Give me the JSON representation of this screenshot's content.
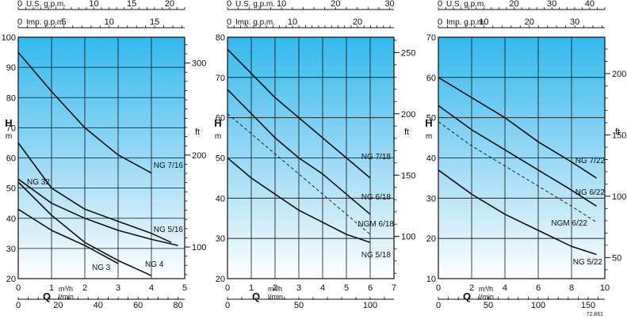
{
  "figure_code": "72.861",
  "chart_data": [
    {
      "type": "line",
      "ylabel": "H",
      "yunit": "m",
      "ylabel_right": "ft",
      "xlabel": "Q",
      "xunits": [
        "m³/h",
        "l/min"
      ],
      "ylim": [
        20,
        100
      ],
      "y_ticks": [
        20,
        30,
        40,
        50,
        60,
        70,
        80,
        90,
        100
      ],
      "ft_ticks": [
        100,
        200,
        300
      ],
      "xlim_m3h": [
        0,
        5
      ],
      "m3h_ticks": [
        0,
        1,
        2,
        3,
        4,
        5
      ],
      "lmin_ticks": [
        0,
        20,
        40,
        60,
        80
      ],
      "top_scales": [
        {
          "label": "U.S. g.p.m.",
          "ticks": [
            0,
            10,
            15,
            20
          ],
          "tick_labels": [
            "0",
            "10",
            "15",
            "20"
          ]
        },
        {
          "label": "Imp. g.p.m.",
          "ticks": [
            0,
            5,
            10,
            15
          ],
          "tick_labels": [
            "0",
            "5",
            "10",
            "15"
          ]
        }
      ],
      "series": [
        {
          "name": "NG 7/16",
          "dashed": false,
          "x": [
            0,
            1,
            2,
            3,
            4
          ],
          "y": [
            95,
            82,
            70,
            61,
            55
          ]
        },
        {
          "name": "NG 32",
          "dashed": false,
          "x": [
            0,
            1,
            2,
            3,
            4,
            4.8
          ],
          "y": [
            53,
            45,
            40,
            36,
            33,
            31
          ]
        },
        {
          "name": "NG 5/16",
          "dashed": false,
          "x": [
            0,
            1,
            2,
            3,
            4,
            4.6
          ],
          "y": [
            65,
            50,
            43,
            39,
            35,
            32
          ]
        },
        {
          "name": "NG 4",
          "dashed": false,
          "x": [
            0,
            1,
            2,
            3,
            4
          ],
          "y": [
            52,
            41,
            32,
            26,
            21
          ]
        },
        {
          "name": "NG 3",
          "dashed": false,
          "x": [
            0,
            1,
            2,
            3
          ],
          "y": [
            43,
            36,
            31,
            25
          ]
        }
      ]
    },
    {
      "type": "line",
      "ylabel": "H",
      "yunit": "m",
      "ylabel_right": "ft",
      "xlabel": "Q",
      "xunits": [
        "m³/h",
        "l/min"
      ],
      "ylim": [
        20,
        80
      ],
      "y_ticks": [
        20,
        30,
        40,
        50,
        60,
        70,
        80
      ],
      "ft_ticks": [
        100,
        150,
        200,
        250
      ],
      "xlim_m3h": [
        0,
        7
      ],
      "m3h_ticks": [
        0,
        1,
        2,
        3,
        4,
        5,
        6,
        7
      ],
      "lmin_ticks": [
        0,
        50,
        100
      ],
      "top_scales": [
        {
          "label": "U.S. g.p.m.",
          "ticks": [
            0,
            10,
            20,
            30
          ],
          "tick_labels": [
            "0",
            "10",
            "20",
            "30"
          ]
        },
        {
          "label": "Imp. g.p.m.",
          "ticks": [
            0,
            10,
            20
          ],
          "tick_labels": [
            "0",
            "10",
            "20"
          ]
        }
      ],
      "series": [
        {
          "name": "NG 7/18",
          "dashed": false,
          "x": [
            0,
            1,
            2,
            3,
            4,
            5,
            6
          ],
          "y": [
            77,
            71,
            65,
            60,
            55,
            50,
            45
          ]
        },
        {
          "name": "NG 6/18",
          "dashed": false,
          "x": [
            0,
            1,
            2,
            3,
            4,
            5,
            6
          ],
          "y": [
            67,
            61,
            55,
            50,
            46,
            41,
            36
          ]
        },
        {
          "name": "NGM 6/18",
          "dashed": true,
          "x": [
            0,
            1,
            2,
            3,
            4,
            5,
            6
          ],
          "y": [
            61,
            56,
            51,
            46,
            41,
            36,
            31
          ]
        },
        {
          "name": "NG 5/18",
          "dashed": false,
          "x": [
            0,
            1,
            2,
            3,
            4,
            5,
            6
          ],
          "y": [
            50,
            45,
            41,
            37,
            34,
            31,
            29
          ]
        }
      ]
    },
    {
      "type": "line",
      "ylabel": "H",
      "yunit": "m",
      "ylabel_right": "ft",
      "xlabel": "Q",
      "xunits": [
        "m³/h",
        "l/min"
      ],
      "ylim": [
        10,
        70
      ],
      "y_ticks": [
        10,
        20,
        30,
        40,
        50,
        60,
        70
      ],
      "ft_ticks": [
        50,
        100,
        150,
        200
      ],
      "xlim_m3h": [
        0,
        10
      ],
      "m3h_ticks": [
        0,
        2,
        4,
        6,
        8,
        10
      ],
      "lmin_ticks": [
        0,
        50,
        100,
        150
      ],
      "top_scales": [
        {
          "label": "U.S. g.p.m.",
          "ticks": [
            0,
            20,
            30,
            40
          ],
          "tick_labels": [
            "0",
            "20",
            "30",
            "40"
          ]
        },
        {
          "label": "Imp. g.p.m.",
          "ticks": [
            0,
            10,
            20,
            30
          ],
          "tick_labels": [
            "0",
            "10",
            "20",
            "30"
          ]
        }
      ],
      "series": [
        {
          "name": "NG 7/22",
          "dashed": false,
          "x": [
            0,
            2,
            4,
            6,
            8,
            9.5
          ],
          "y": [
            60,
            55,
            50,
            44,
            39,
            35
          ]
        },
        {
          "name": "NG 6/22",
          "dashed": false,
          "x": [
            0,
            2,
            4,
            6,
            8,
            9.5
          ],
          "y": [
            53,
            47,
            42,
            37,
            32,
            28
          ]
        },
        {
          "name": "NGM 6/22",
          "dashed": true,
          "x": [
            0,
            2,
            4,
            6,
            8,
            9.5
          ],
          "y": [
            49,
            43,
            38,
            33,
            28,
            24
          ]
        },
        {
          "name": "NG 5/22",
          "dashed": false,
          "x": [
            0,
            2,
            4,
            6,
            8,
            9.5
          ],
          "y": [
            37,
            31,
            26,
            22,
            18,
            16
          ]
        }
      ]
    }
  ]
}
